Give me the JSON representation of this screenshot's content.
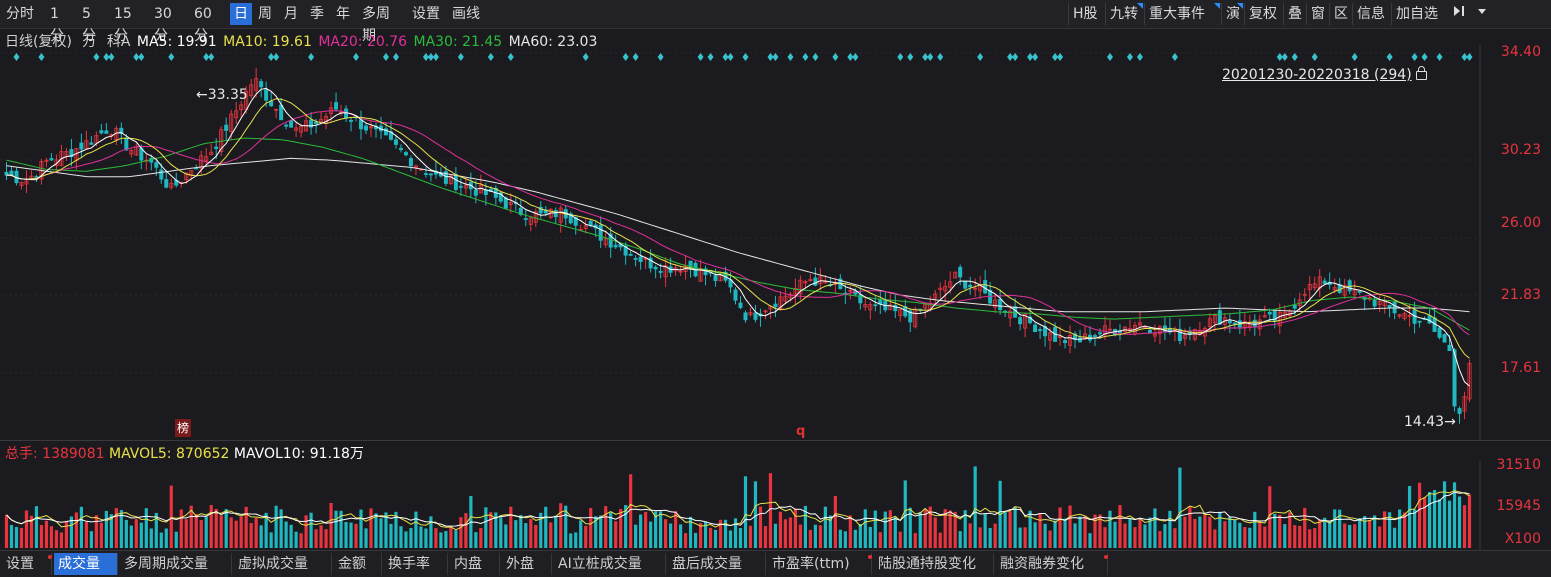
{
  "toolbar": {
    "periods": [
      "分时",
      "1分",
      "5分",
      "15分",
      "30分",
      "60分",
      "日",
      "周",
      "月",
      "季",
      "年",
      "多周期",
      "设置",
      "画线"
    ],
    "active_period": "日",
    "right_buttons": [
      "H股",
      "九转",
      "重大事件",
      "演",
      "复权",
      "叠",
      "窗",
      "区",
      "信息",
      "加自选"
    ]
  },
  "legend": {
    "label": "日线(复权)",
    "unit": "万",
    "name": "科A",
    "ma5": "MA5: 19.91",
    "ma10": "MA10: 19.61",
    "ma20": "MA20: 20.76",
    "ma30": "MA30: 21.45",
    "ma60": "MA60: 23.03"
  },
  "range": {
    "text": "20201230-20220318 (294)"
  },
  "annotations": {
    "high": "33.35",
    "low": "14.43",
    "badge": "榜",
    "q": "q"
  },
  "price_axis": [
    "34.40",
    "30.23",
    "26.00",
    "21.83",
    "17.61"
  ],
  "volume_legend": {
    "total": "总手: 1389081",
    "mavol5": "MAVOL5: 870652",
    "mavol10": "MAVOL10: 91.18万"
  },
  "volume_axis": [
    "31510",
    "15945",
    "X100"
  ],
  "bottom_tabs": [
    "设置",
    "成交量",
    "多周期成交量",
    "虚拟成交量",
    "金额",
    "换手率",
    "内盘",
    "外盘",
    "AI立桩成交量",
    "盘后成交量",
    "市盈率(ttm)",
    "陆股通持股变化",
    "融资融券变化"
  ],
  "bottom_active": "成交量",
  "colors": {
    "up": "#e8343e",
    "down": "#1fb7c0",
    "ma5": "#ffffff",
    "ma10": "#e8e14a",
    "ma20": "#e0309a",
    "ma30": "#2dbb3a",
    "ma60": "#e6e6e6",
    "signal": "#36c3cd"
  },
  "chart_data": {
    "type": "candlestick",
    "title": "日线(复权) 科A",
    "period": "20201230-20220318",
    "count": 294,
    "yrange": [
      14.0,
      34.4
    ],
    "high_marker": 33.35,
    "low_marker": 14.43,
    "close_path": [
      27.8,
      27.5,
      28.6,
      29.0,
      29.6,
      30.4,
      29.2,
      28.5,
      27.0,
      28.2,
      29.2,
      31.0,
      33.0,
      31.5,
      30.2,
      30.6,
      31.4,
      30.7,
      30.0,
      29.2,
      28.3,
      27.6,
      27.3,
      26.9,
      26.4,
      25.8,
      25.6,
      25.8,
      25.1,
      24.4,
      23.8,
      23.1,
      22.8,
      22.9,
      22.4,
      21.9,
      20.0,
      20.8,
      21.4,
      22.2,
      21.8,
      21.2,
      20.6,
      20.4,
      20.1,
      21.1,
      22.3,
      21.7,
      20.9,
      20.2,
      19.6,
      18.9,
      18.8,
      19.3,
      19.5,
      19.8,
      19.4,
      19.1,
      19.7,
      20.1,
      19.7,
      19.9,
      20.1,
      21.6,
      22.1,
      21.5,
      21.2,
      20.6,
      20.2,
      19.7,
      18.4,
      17.6
    ],
    "ma60_path": [
      28.3,
      28.0,
      27.7,
      27.7,
      28.0,
      28.3,
      28.5,
      28.7,
      28.6,
      28.4,
      28.2,
      27.8,
      27.4,
      26.9,
      26.3,
      25.7,
      25.0,
      24.3,
      23.6,
      23.0,
      22.4,
      21.8,
      21.3,
      21.0,
      20.8,
      20.6,
      20.4,
      20.4,
      20.4,
      20.5,
      20.6,
      20.5,
      20.4,
      20.5,
      20.6,
      20.6,
      20.4
    ],
    "ma30_path": [
      28.6,
      28.1,
      28.0,
      28.3,
      28.8,
      29.5,
      29.8,
      29.7,
      29.3,
      28.7,
      27.9,
      27.1,
      26.4,
      25.7,
      25.1,
      24.5,
      23.8,
      23.0,
      22.5,
      22.0,
      21.6,
      21.4,
      21.1,
      20.9,
      20.6,
      20.4,
      20.3,
      20.1,
      20.0,
      20.1,
      20.2,
      20.3,
      20.5,
      21.0,
      21.2,
      21.0,
      20.6,
      19.4
    ],
    "signal_days_top": true,
    "volume": {
      "unit": "X100",
      "yrange": [
        0,
        35000
      ],
      "ticks": [
        31510,
        15945
      ],
      "total": 1389081,
      "mavol5": 870652,
      "mavol10": "91.18万"
    }
  }
}
